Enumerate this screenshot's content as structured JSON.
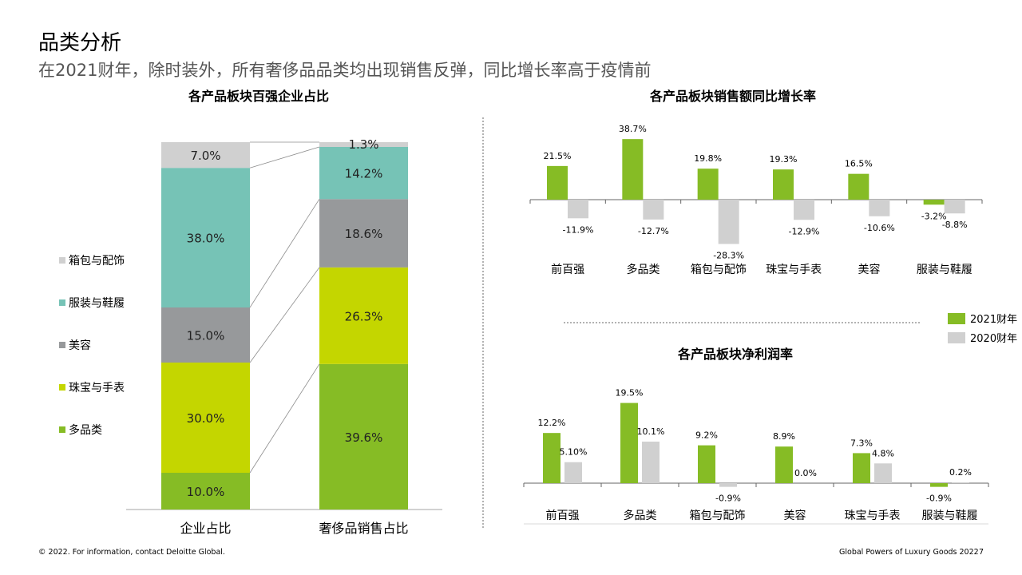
{
  "page": {
    "title": "品类分析",
    "subtitle": "在2021财年，除时装外，所有奢侈品品类均出现销售反弹，同比增长率高于疫情前",
    "footer_left": "© 2022. For information, contact Deloitte Global.",
    "footer_right": "Global Powers of Luxury Goods 2022",
    "page_number": "7"
  },
  "colors": {
    "green": "#86bc25",
    "light_gray": "#d0d0d0",
    "teal": "#76c3b6",
    "mid_gray": "#97999b",
    "lime": "#c4d600",
    "axis": "#a6a6a6"
  },
  "chart_data": [
    {
      "type": "bar",
      "stacked": true,
      "title": "各产品板块百强企业占比",
      "categories": [
        "企业占比",
        "奢侈品销售占比"
      ],
      "series": [
        {
          "name": "多品类",
          "values": [
            10.0,
            39.6
          ],
          "labels": [
            "10.0%",
            "39.6%"
          ],
          "color": "#86bc25"
        },
        {
          "name": "珠宝与手表",
          "values": [
            30.0,
            26.3
          ],
          "labels": [
            "30.0%",
            "26.3%"
          ],
          "color": "#c4d600"
        },
        {
          "name": "美容",
          "values": [
            15.0,
            18.6
          ],
          "labels": [
            "15.0%",
            "18.6%"
          ],
          "color": "#97999b"
        },
        {
          "name": "服装与鞋履",
          "values": [
            38.0,
            14.2
          ],
          "labels": [
            "38.0%",
            "14.2%"
          ],
          "color": "#76c3b6"
        },
        {
          "name": "箱包与配饰",
          "values": [
            7.0,
            1.3
          ],
          "labels": [
            "7.0%",
            "1.3%"
          ],
          "color": "#d0d0d0"
        }
      ],
      "legend_order": [
        "箱包与配饰",
        "服装与鞋履",
        "美容",
        "珠宝与手表",
        "多品类"
      ],
      "legend_position": "left",
      "ylim": [
        0,
        100
      ],
      "grid": false
    },
    {
      "type": "bar",
      "title": "各产品板块销售额同比增长率",
      "categories": [
        "前百强",
        "多品类",
        "箱包与配饰",
        "珠宝与手表",
        "美容",
        "服装与鞋履"
      ],
      "series": [
        {
          "name": "2021财年",
          "values": [
            21.5,
            38.7,
            19.8,
            19.3,
            16.5,
            -3.2
          ],
          "labels": [
            "21.5%",
            "38.7%",
            "19.8%",
            "19.3%",
            "16.5%",
            "-3.2%"
          ],
          "color": "#86bc25"
        },
        {
          "name": "2020财年",
          "values": [
            -11.9,
            -12.7,
            -28.3,
            -12.9,
            -10.6,
            -8.8
          ],
          "labels": [
            "-11.9%",
            "-12.7%",
            "-28.3%",
            "-12.9%",
            "-10.6%",
            "-8.8%"
          ],
          "color": "#d0d0d0"
        }
      ],
      "grid": false
    },
    {
      "type": "bar",
      "title": "各产品板块净利润率",
      "categories": [
        "前百强",
        "多品类",
        "箱包与配饰",
        "美容",
        "珠宝与手表",
        "服装与鞋履"
      ],
      "series": [
        {
          "name": "2021财年",
          "values": [
            12.2,
            19.5,
            9.2,
            8.9,
            7.3,
            -0.9
          ],
          "labels": [
            "12.2%",
            "19.5%",
            "9.2%",
            "8.9%",
            "7.3%",
            "-0.9%"
          ],
          "color": "#86bc25"
        },
        {
          "name": "2020财年",
          "values": [
            5.1,
            10.1,
            -0.9,
            0.0,
            4.8,
            0.2
          ],
          "labels": [
            "5.10%",
            "10.1%",
            "-0.9%",
            "0.0%",
            "4.8%",
            "0.2%"
          ],
          "color": "#d0d0d0"
        }
      ],
      "grid": false
    }
  ],
  "legend_years": [
    {
      "label": "2021财年",
      "color": "#86bc25"
    },
    {
      "label": "2020财年",
      "color": "#d0d0d0"
    }
  ]
}
